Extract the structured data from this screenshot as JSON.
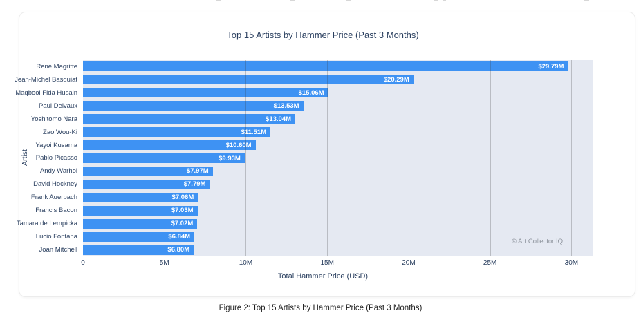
{
  "figure_caption": "Figure 2: Top 15 Artists by Hammer Price (Past 3 Months)",
  "chart_data": {
    "type": "bar",
    "orientation": "horizontal",
    "title": "Top 15 Artists by Hammer Price (Past 3 Months)",
    "xlabel": "Total Hammer Price (USD)",
    "ylabel": "Artist",
    "watermark": "© Art Collector IQ",
    "categories": [
      "René Magritte",
      "Jean-Michel Basquiat",
      "Maqbool Fida Husain",
      "Paul Delvaux",
      "Yoshitomo Nara",
      "Zao Wou-Ki",
      "Yayoi Kusama",
      "Pablo Picasso",
      "Andy Warhol",
      "David Hockney",
      "Frank Auerbach",
      "Francis Bacon",
      "Tamara de Lempicka",
      "Lucio Fontana",
      "Joan Mitchell"
    ],
    "values": [
      29.79,
      20.29,
      15.06,
      13.53,
      13.04,
      11.51,
      10.6,
      9.93,
      7.97,
      7.79,
      7.06,
      7.03,
      7.02,
      6.84,
      6.8
    ],
    "value_labels": [
      "$29.79M",
      "$20.29M",
      "$15.06M",
      "$13.53M",
      "$13.04M",
      "$11.51M",
      "$10.60M",
      "$9.93M",
      "$7.97M",
      "$7.79M",
      "$7.06M",
      "$7.03M",
      "$7.02M",
      "$6.84M",
      "$6.80M"
    ],
    "xlim": [
      0,
      31.3
    ],
    "xticks": [
      0,
      5,
      10,
      15,
      20,
      25,
      30
    ],
    "xtick_labels": [
      "0",
      "5M",
      "10M",
      "15M",
      "20M",
      "25M",
      "30M"
    ],
    "grid": true,
    "gridlines_above_bars": true,
    "legend": false,
    "colors": {
      "bar": "#3E92F3",
      "plot_background": "#E5E9F2",
      "grid_line": "rgba(55,55,55,0.25)",
      "axis_text": "#2A3F5F",
      "value_label_text": "#FFFFFF",
      "watermark_text": "#8C929B"
    }
  }
}
